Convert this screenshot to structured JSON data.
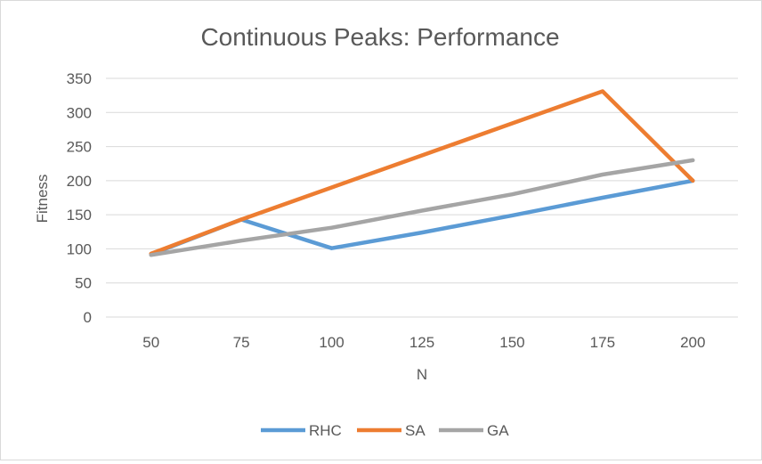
{
  "chart_data": {
    "type": "line",
    "title": "Continuous Peaks: Performance",
    "xlabel": "N",
    "ylabel": "Fitness",
    "x": [
      50,
      75,
      100,
      125,
      150,
      175,
      200
    ],
    "ylim": [
      0,
      350
    ],
    "yticks": [
      0,
      50,
      100,
      150,
      200,
      250,
      300,
      350
    ],
    "grid": true,
    "legend": "bottom",
    "series": [
      {
        "name": "RHC",
        "color": "#5b9bd5",
        "values": [
          92,
          143,
          101,
          124,
          149,
          175,
          200
        ]
      },
      {
        "name": "SA",
        "color": "#ed7d31",
        "values": [
          93,
          143,
          190,
          237,
          284,
          331,
          200
        ]
      },
      {
        "name": "GA",
        "color": "#a5a5a5",
        "values": [
          91,
          112,
          131,
          156,
          180,
          209,
          230
        ]
      }
    ]
  }
}
